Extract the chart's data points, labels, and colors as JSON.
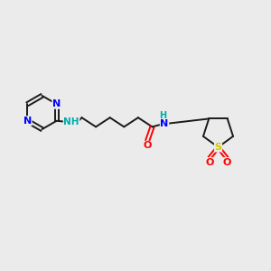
{
  "bg_color": "#ebebeb",
  "bond_color": "#1a1a1a",
  "nitrogen_color": "#0000ff",
  "oxygen_color": "#ff0000",
  "sulfur_color": "#cccc00",
  "nh_color": "#00aaaa",
  "figsize": [
    3.0,
    3.0
  ],
  "dpi": 100,
  "xlim": [
    0,
    10
  ],
  "ylim": [
    0,
    10
  ],
  "lw": 1.4,
  "font_size": 7.5
}
